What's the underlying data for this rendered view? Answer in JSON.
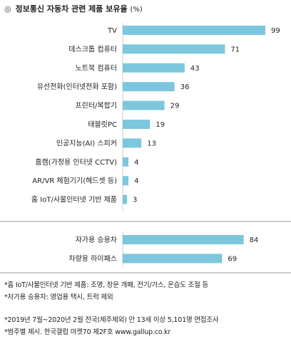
{
  "title": "정보통신 자동차 관련 제품 보유율",
  "unit": "(%)",
  "title_bullet": "◎",
  "bar_color": "#7cc7dd",
  "chart_data": [
    {
      "type": "bar",
      "orientation": "horizontal",
      "categories": [
        "TV",
        "데스크톱 컴퓨터",
        "노트북 컴퓨터",
        "유선전화(인터넷전화 포함)",
        "프린터/복합기",
        "태블릿PC",
        "인공지능(AI) 스피커",
        "홈캠(가정용 인터넷 CCTV)",
        "AR/VR 체험기기(헤드셋 등)",
        "홈 IoT/사물인터넷 기반 제품"
      ],
      "values": [
        99,
        71,
        43,
        36,
        29,
        19,
        13,
        4,
        4,
        3
      ],
      "xlim": [
        0,
        100
      ]
    },
    {
      "type": "bar",
      "orientation": "horizontal",
      "categories": [
        "자가용 승용차",
        "차량용 하이패스"
      ],
      "values": [
        84,
        69
      ],
      "xlim": [
        0,
        100
      ]
    }
  ],
  "notes": [
    "*홈 IoT/사물인터넷 기반 제품: 조명, 창문 개폐, 전기/가스, 온습도 조절 등",
    "*자가용 승용차: 영업용 택시, 트럭 제외",
    "*2019년 7월~2020년 2월 전국(제주제외) 만 13세 이상 5,101명 면접조사",
    "*범주별 제시. 한국갤럽 마켓70 제2F호 www.gallup.co.kr"
  ]
}
